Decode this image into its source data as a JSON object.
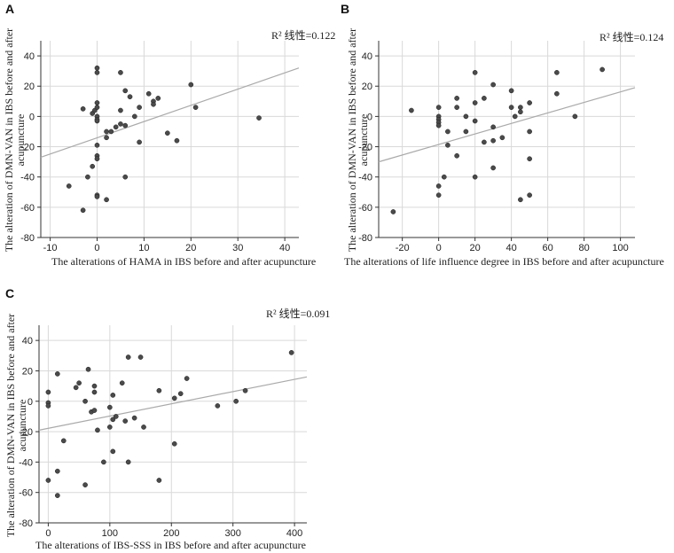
{
  "chart_data": [
    {
      "panel": "A",
      "type": "scatter",
      "r2_text": "R² 线性=0.122",
      "xlabel": "The alterations of HAMA in IBS before and after acupuncture",
      "ylabel_line1": "The alteration of DMN-VAN in IBS before and after",
      "ylabel_line2": "acupuncture",
      "xlim": [
        -12,
        43
      ],
      "ylim": [
        -80,
        50
      ],
      "xticks": [
        -10,
        0,
        10,
        20,
        30,
        40
      ],
      "yticks": [
        -80,
        -60,
        -40,
        -20,
        0,
        20,
        40
      ],
      "fit": [
        [
          -12,
          -27
        ],
        [
          43,
          32
        ]
      ],
      "points": [
        [
          -6,
          -46
        ],
        [
          -3,
          -62
        ],
        [
          -3,
          5
        ],
        [
          -2,
          -40
        ],
        [
          -1,
          -33
        ],
        [
          -1,
          2
        ],
        [
          -0.5,
          4
        ],
        [
          0,
          32
        ],
        [
          0,
          29
        ],
        [
          0,
          9
        ],
        [
          0,
          6
        ],
        [
          0,
          0
        ],
        [
          0,
          -2
        ],
        [
          0,
          -3
        ],
        [
          0,
          -19
        ],
        [
          0,
          -26
        ],
        [
          0,
          -28
        ],
        [
          0,
          -52
        ],
        [
          0,
          -53
        ],
        [
          2,
          -55
        ],
        [
          2,
          -10
        ],
        [
          2,
          -14
        ],
        [
          3,
          -10
        ],
        [
          4,
          -7
        ],
        [
          5,
          29
        ],
        [
          5,
          4
        ],
        [
          5,
          -5
        ],
        [
          6,
          17
        ],
        [
          6,
          -6
        ],
        [
          6,
          -40
        ],
        [
          7,
          13
        ],
        [
          8,
          0
        ],
        [
          9,
          6
        ],
        [
          9,
          -17
        ],
        [
          11,
          15
        ],
        [
          12,
          10
        ],
        [
          12,
          8
        ],
        [
          13,
          12
        ],
        [
          15,
          -11
        ],
        [
          17,
          -16
        ],
        [
          20,
          21
        ],
        [
          21,
          6
        ],
        [
          34.5,
          -1
        ]
      ]
    },
    {
      "panel": "B",
      "type": "scatter",
      "r2_text": "R² 线性=0.124",
      "xlabel": "The alterations of life influence degree in IBS before and after acupuncture",
      "ylabel_line1": "The alteration of DMN-VAN in IBS before and after",
      "ylabel_line2": "acupuncture",
      "xlim": [
        -33,
        108
      ],
      "ylim": [
        -80,
        50
      ],
      "xticks": [
        -20,
        0,
        20,
        40,
        60,
        80,
        100
      ],
      "yticks": [
        -80,
        -60,
        -40,
        -20,
        0,
        20,
        40
      ],
      "fit": [
        [
          -33,
          -30
        ],
        [
          108,
          19
        ]
      ],
      "points": [
        [
          -25,
          -63
        ],
        [
          -15,
          4
        ],
        [
          0,
          6
        ],
        [
          0,
          0
        ],
        [
          0,
          -2
        ],
        [
          0,
          -4
        ],
        [
          0,
          -6
        ],
        [
          0,
          -46
        ],
        [
          0,
          -52
        ],
        [
          3,
          -40
        ],
        [
          5,
          -10
        ],
        [
          5,
          -19
        ],
        [
          10,
          12
        ],
        [
          10,
          6
        ],
        [
          10,
          -26
        ],
        [
          15,
          0
        ],
        [
          15,
          -10
        ],
        [
          20,
          29
        ],
        [
          20,
          9
        ],
        [
          20,
          -3
        ],
        [
          20,
          -40
        ],
        [
          25,
          12
        ],
        [
          25,
          -17
        ],
        [
          30,
          21
        ],
        [
          30,
          -7
        ],
        [
          30,
          -16
        ],
        [
          30,
          -34
        ],
        [
          35,
          -14
        ],
        [
          40,
          17
        ],
        [
          40,
          6
        ],
        [
          42,
          0
        ],
        [
          45,
          6
        ],
        [
          45,
          3
        ],
        [
          45,
          -55
        ],
        [
          50,
          9
        ],
        [
          50,
          -10
        ],
        [
          50,
          -28
        ],
        [
          50,
          -52
        ],
        [
          65,
          29
        ],
        [
          65,
          15
        ],
        [
          75,
          0
        ],
        [
          90,
          31
        ]
      ]
    },
    {
      "panel": "C",
      "type": "scatter",
      "r2_text": "R² 线性=0.091",
      "xlabel": "The alterations of IBS-SSS in IBS before and after acupuncture",
      "ylabel_line1": "The alteration of DMN-VAN in IBS before and after",
      "ylabel_line2": "acupuncture",
      "xlim": [
        -15,
        420
      ],
      "ylim": [
        -80,
        50
      ],
      "xticks": [
        0,
        100,
        200,
        300,
        400
      ],
      "yticks": [
        -80,
        -60,
        -40,
        -20,
        0,
        20,
        40
      ],
      "fit": [
        [
          -15,
          -19
        ],
        [
          420,
          16
        ]
      ],
      "points": [
        [
          0,
          6
        ],
        [
          0,
          -1
        ],
        [
          0,
          -3
        ],
        [
          0,
          -52
        ],
        [
          15,
          18
        ],
        [
          15,
          -46
        ],
        [
          15,
          -62
        ],
        [
          25,
          -26
        ],
        [
          45,
          9
        ],
        [
          50,
          12
        ],
        [
          60,
          0
        ],
        [
          60,
          -55
        ],
        [
          65,
          21
        ],
        [
          70,
          -7
        ],
        [
          75,
          10
        ],
        [
          75,
          6
        ],
        [
          75,
          -6
        ],
        [
          80,
          -19
        ],
        [
          90,
          -40
        ],
        [
          100,
          -17
        ],
        [
          100,
          -4
        ],
        [
          105,
          -33
        ],
        [
          105,
          4
        ],
        [
          105,
          -12
        ],
        [
          110,
          -10
        ],
        [
          120,
          12
        ],
        [
          125,
          -13
        ],
        [
          130,
          -40
        ],
        [
          130,
          29
        ],
        [
          140,
          -11
        ],
        [
          150,
          29
        ],
        [
          155,
          -17
        ],
        [
          180,
          7
        ],
        [
          180,
          -52
        ],
        [
          205,
          2
        ],
        [
          205,
          -28
        ],
        [
          215,
          5
        ],
        [
          225,
          15
        ],
        [
          275,
          -3
        ],
        [
          305,
          0
        ],
        [
          320,
          7
        ],
        [
          395,
          32
        ]
      ]
    }
  ]
}
